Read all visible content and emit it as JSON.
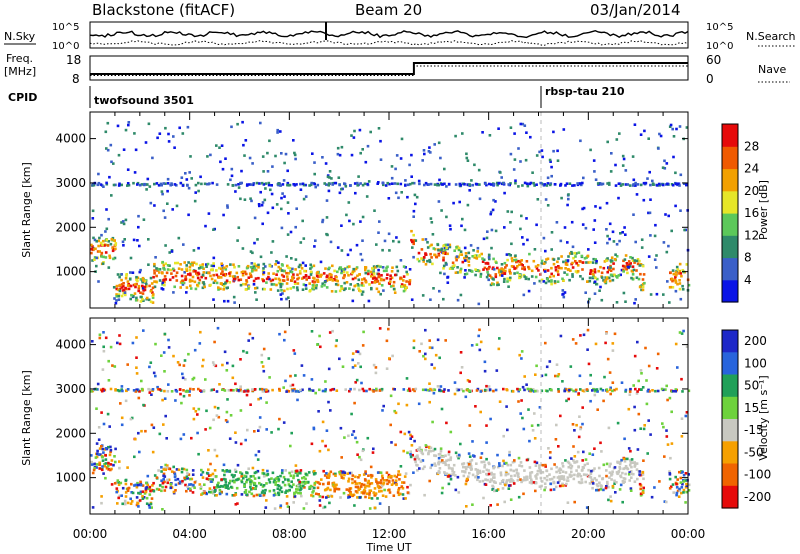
{
  "header": {
    "station_title": "Blackstone (fitACF)",
    "beam_title": "Beam 20",
    "date_title": "03/Jan/2014"
  },
  "top_panels": {
    "nsky_label": "N.Sky",
    "nsearch_label": "N.Search",
    "noise_tick_high": "10^5",
    "noise_tick_low": "10^0",
    "freq_label": "Freq.",
    "freq_unit": "[MHz]",
    "freq_ticks": [
      "18",
      "8"
    ],
    "nave_label": "Nave",
    "nave_ticks": [
      "60",
      "0"
    ],
    "cpid_label": "CPID",
    "cpid_modes": [
      {
        "name": "twofsound 3501",
        "start_hour": 0
      },
      {
        "name": "rbsp-tau 210",
        "start_hour": 18
      }
    ]
  },
  "chart_data": [
    {
      "type": "heatmap",
      "title": "",
      "xlabel": "",
      "ylabel": "Slant Range [km]",
      "x_range_hours": [
        0,
        24
      ],
      "ylim": [
        180,
        4600
      ],
      "x_tick_labels": [
        "00:00",
        "04:00",
        "08:00",
        "12:00",
        "16:00",
        "20:00",
        "00:00"
      ],
      "y_ticks": [
        1000,
        2000,
        3000,
        4000
      ],
      "colorbar": {
        "label": "Power [dB]",
        "ticks": [
          "4",
          "8",
          "12",
          "16",
          "20",
          "24",
          "28"
        ],
        "colors": [
          "#0a14e6",
          "#3a5fc8",
          "#2f8a6a",
          "#5cc85a",
          "#e6e628",
          "#f2a000",
          "#f05a00",
          "#e60a0a"
        ]
      }
    },
    {
      "type": "heatmap",
      "title": "",
      "xlabel": "Time UT",
      "ylabel": "Slant Range [km]",
      "x_range_hours": [
        0,
        24
      ],
      "ylim": [
        180,
        4600
      ],
      "x_tick_labels": [
        "00:00",
        "04:00",
        "08:00",
        "12:00",
        "16:00",
        "20:00",
        "00:00"
      ],
      "y_ticks": [
        1000,
        2000,
        3000,
        4000
      ],
      "colorbar": {
        "label": "Velocity [m s⁻¹]",
        "ticks": [
          "200",
          "100",
          "50",
          "15",
          "-15",
          "-50",
          "-100",
          "-200"
        ],
        "colors": [
          "#1e28c8",
          "#2864dc",
          "#20a058",
          "#6ed23c",
          "#c8c8c0",
          "#f5a000",
          "#f06400",
          "#e60a0a"
        ]
      }
    }
  ]
}
